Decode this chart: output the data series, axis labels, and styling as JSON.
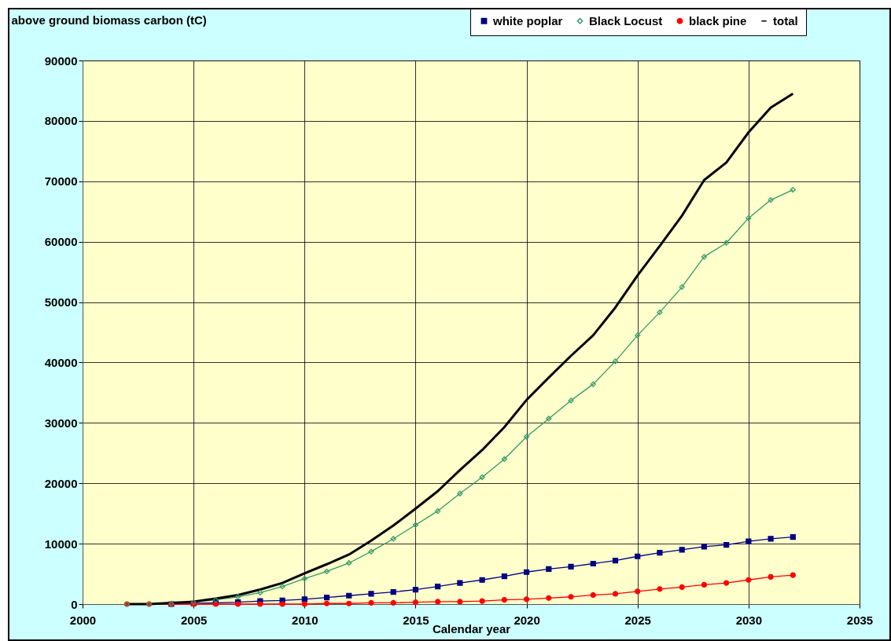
{
  "chart_data": {
    "type": "line",
    "ylabel": "above ground biomass carbon (tC)",
    "xlabel": "Calendar year",
    "x": [
      2002,
      2003,
      2004,
      2005,
      2006,
      2007,
      2008,
      2009,
      2010,
      2011,
      2012,
      2013,
      2014,
      2015,
      2016,
      2017,
      2018,
      2019,
      2020,
      2021,
      2022,
      2023,
      2024,
      2025,
      2026,
      2027,
      2028,
      2029,
      2030,
      2031,
      2032
    ],
    "series": [
      {
        "name": "white poplar",
        "color": "#000080",
        "marker": "square",
        "values": [
          null,
          null,
          0,
          100,
          200,
          300,
          500,
          600,
          800,
          1100,
          1400,
          1700,
          2000,
          2400,
          2900,
          3500,
          4000,
          4600,
          5300,
          5800,
          6200,
          6700,
          7200,
          7900,
          8500,
          9000,
          9500,
          9800,
          10400,
          10800,
          11100
        ]
      },
      {
        "name": "Black Locust",
        "color": "#339966",
        "marker": "diamond",
        "values": [
          0,
          0,
          100,
          300,
          700,
          1200,
          1900,
          2900,
          4200,
          5400,
          6800,
          8700,
          10800,
          13100,
          15400,
          18300,
          21000,
          24000,
          27700,
          30700,
          33700,
          36400,
          40200,
          44500,
          48300,
          52500,
          57500,
          59800,
          63900,
          66900,
          68600
        ]
      },
      {
        "name": "black pine",
        "color": "#ff0000",
        "marker": "circle",
        "values": [
          0,
          0,
          0,
          0,
          0,
          0,
          0,
          0,
          0,
          100,
          100,
          200,
          200,
          300,
          400,
          400,
          500,
          700,
          800,
          1000,
          1200,
          1500,
          1700,
          2100,
          2500,
          2800,
          3200,
          3500,
          4000,
          4500,
          4800
        ]
      },
      {
        "name": "total",
        "color": "#000000",
        "marker": "none",
        "values": [
          0,
          0,
          200,
          400,
          900,
          1500,
          2400,
          3500,
          5100,
          6600,
          8200,
          10500,
          13000,
          15800,
          18700,
          22200,
          25500,
          29300,
          33800,
          37500,
          41100,
          44500,
          49100,
          54400,
          59300,
          64300,
          70200,
          73100,
          78100,
          82200,
          84500
        ]
      }
    ],
    "xlim": [
      2000,
      2035
    ],
    "xticks": [
      2000,
      2005,
      2010,
      2015,
      2020,
      2025,
      2030,
      2035
    ],
    "ylim": [
      0,
      90000
    ],
    "yticks": [
      0,
      10000,
      20000,
      30000,
      40000,
      50000,
      60000,
      70000,
      80000,
      90000
    ],
    "grid": true,
    "legend": "top right"
  }
}
